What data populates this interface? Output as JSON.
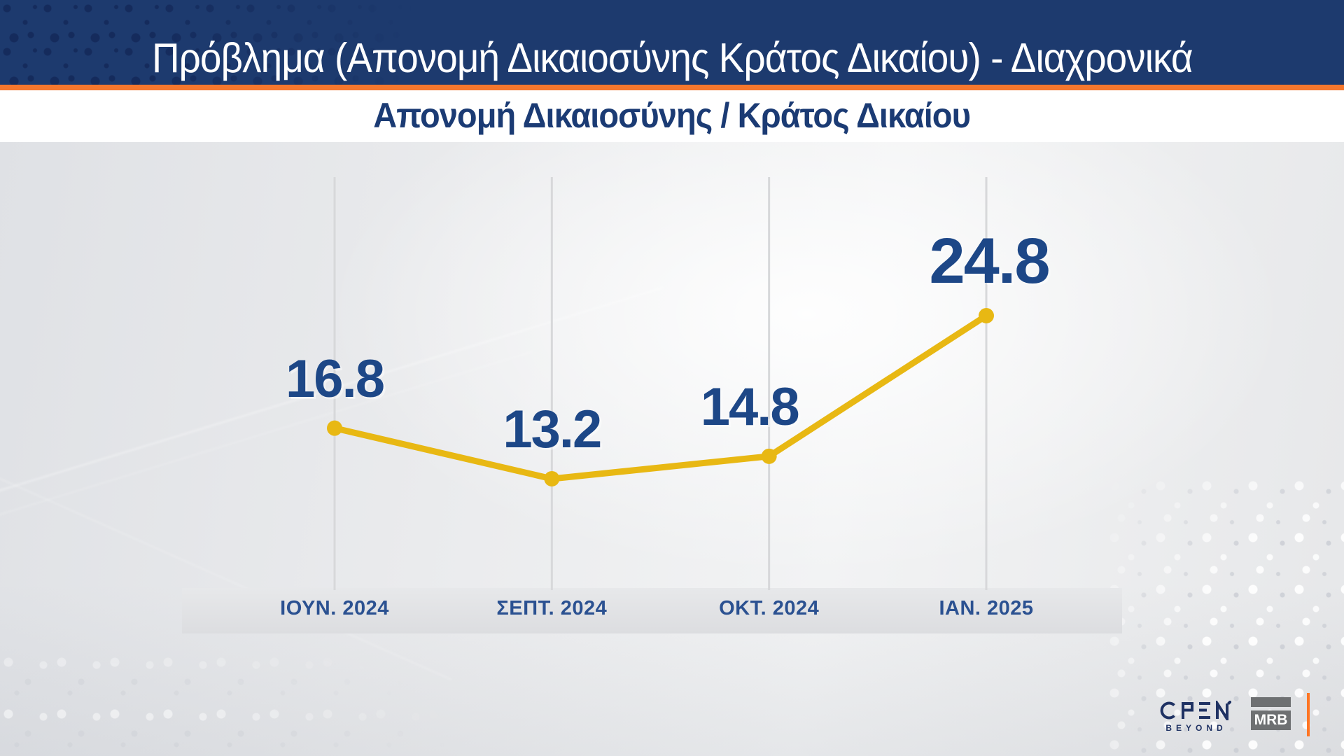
{
  "header": {
    "title": "Πρόβλημα (Απονομή Δικαιοσύνης Κράτος Δικαίου) - Διαχρονικά",
    "subtitle": "Απονομή Δικαιοσύνης / Κράτος Δικαίου"
  },
  "chart_data": {
    "type": "line",
    "title": "Πρόβλημα (Απονομή Δικαιοσύνης Κράτος Δικαίου) - Διαχρονικά",
    "subtitle": "Απονομή Δικαιοσύνης / Κράτος Δικαίου",
    "categories": [
      "ΙΟΥΝ. 2024",
      "ΣΕΠΤ. 2024",
      "ΟΚΤ. 2024",
      "ΙΑΝ. 2025"
    ],
    "values": [
      16.8,
      13.2,
      14.8,
      24.8
    ],
    "series": [
      {
        "name": "Απονομή Δικαιοσύνης / Κράτος Δικαίου",
        "values": [
          16.8,
          13.2,
          14.8,
          24.8
        ]
      }
    ],
    "xlabel": "",
    "ylabel": "",
    "ylim": [
      5,
      35
    ],
    "grid": "vertical-only",
    "legend": "none",
    "data_labels": "above-points"
  },
  "footer": {
    "open_label": "OPEN",
    "open_tagline": "BEYOND",
    "mrb_label": "MRB"
  },
  "colors": {
    "header_navy": "#1d3a6e",
    "header_dot": "#14295a",
    "accent_orange": "#f5772d",
    "subtitle_navy": "#1b3b74",
    "value_label_blue": "#1d4787",
    "axis_label_blue": "#2b5191",
    "line_yellow": "#e8b813",
    "gridline_gray": "#d7d8da",
    "logo_navy": "#1f3263",
    "mrb_gray": "#6e7072"
  }
}
